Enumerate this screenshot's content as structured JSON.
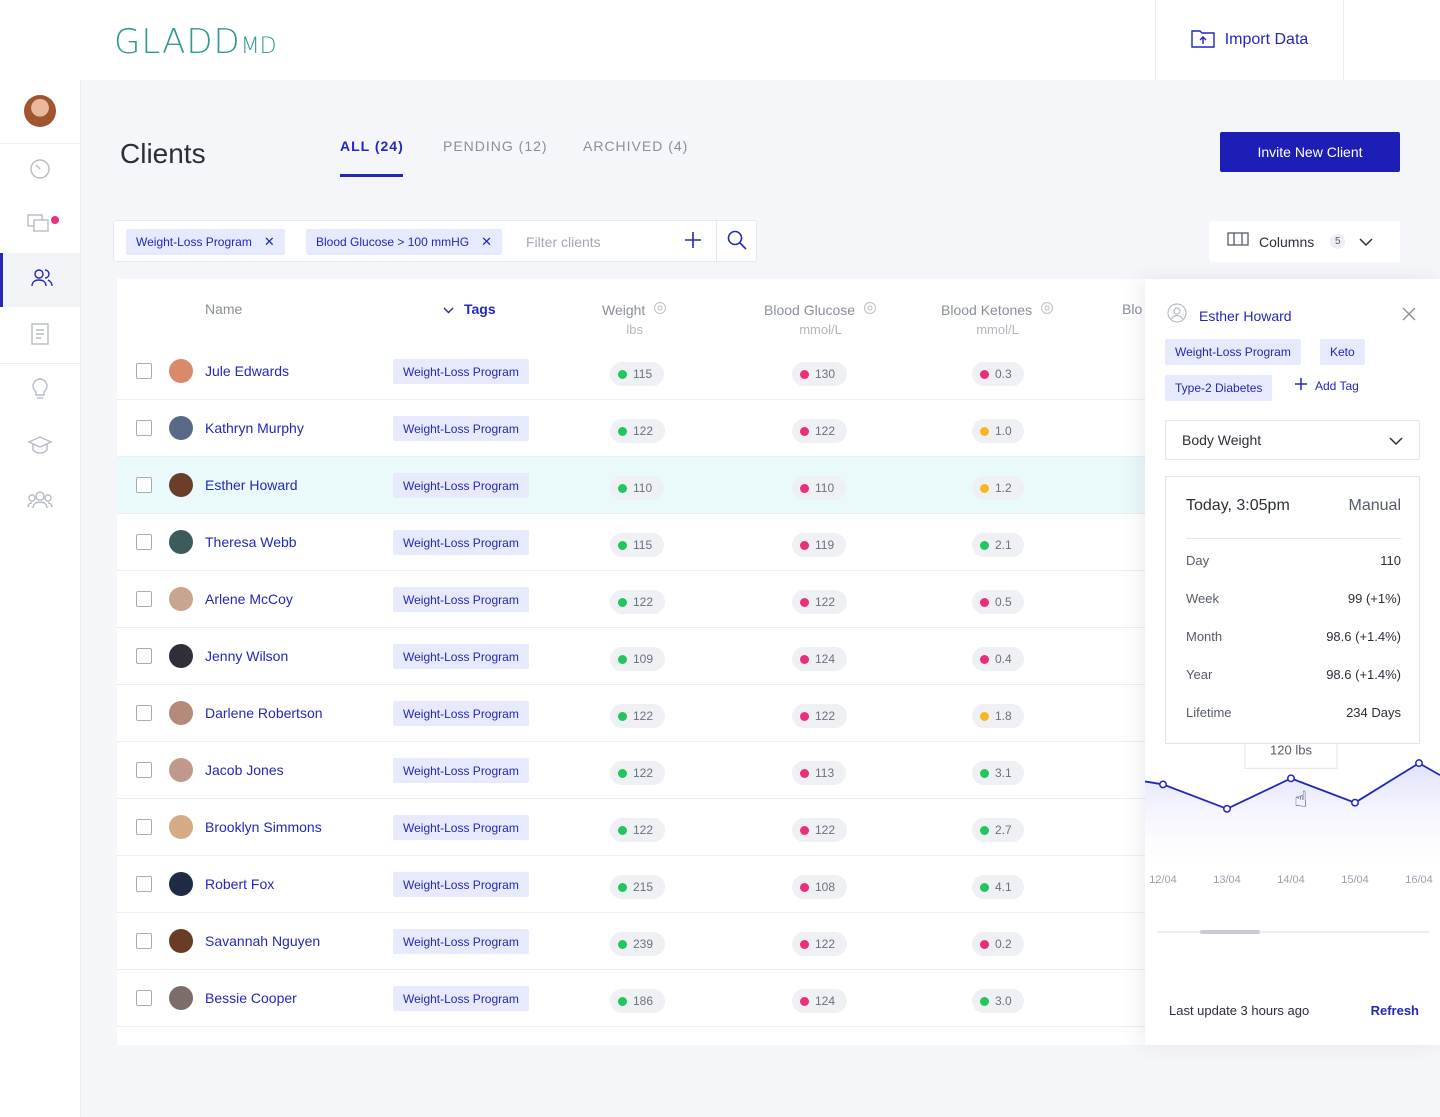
{
  "app": {
    "logo": "GLADD",
    "logo_suffix": "MD",
    "import_label": "Import Data"
  },
  "page": {
    "title": "Clients",
    "invite_label": "Invite New Client"
  },
  "tabs": [
    {
      "label": "ALL (24)",
      "active": true
    },
    {
      "label": "PENDING (12)",
      "active": false
    },
    {
      "label": "ARCHIVED (4)",
      "active": false
    }
  ],
  "filters": {
    "chips": [
      "Weight-Loss Program",
      "Blood Glucose > 100 mmHG"
    ],
    "placeholder": "Filter clients"
  },
  "columns_control": {
    "label": "Columns",
    "count": "5"
  },
  "table": {
    "headers": {
      "name": "Name",
      "tags": "Tags",
      "weight": "Weight",
      "weight_unit": "lbs",
      "glucose": "Blood Glucose",
      "glucose_unit": "mmol/L",
      "ketones": "Blood Ketones",
      "ketones_unit": "mmol/L",
      "extra": "Blo"
    },
    "rows": [
      {
        "name": "Jule Edwards",
        "tag": "Weight-Loss Program",
        "weight": "115",
        "weight_status": "g",
        "glucose": "130",
        "glucose_status": "r",
        "ketones": "0.3",
        "ketones_status": "r",
        "avatar_color": "#d98a6a"
      },
      {
        "name": "Kathryn Murphy",
        "tag": "Weight-Loss Program",
        "weight": "122",
        "weight_status": "g",
        "glucose": "122",
        "glucose_status": "r",
        "ketones": "1.0",
        "ketones_status": "y",
        "avatar_color": "#5a6a86"
      },
      {
        "name": "Esther Howard",
        "tag": "Weight-Loss Program",
        "weight": "110",
        "weight_status": "g",
        "glucose": "110",
        "glucose_status": "r",
        "ketones": "1.2",
        "ketones_status": "y",
        "avatar_color": "#6b3e2a"
      },
      {
        "name": "Theresa Webb",
        "tag": "Weight-Loss Program",
        "weight": "115",
        "weight_status": "g",
        "glucose": "119",
        "glucose_status": "r",
        "ketones": "2.1",
        "ketones_status": "g",
        "avatar_color": "#3c5b5a"
      },
      {
        "name": "Arlene McCoy",
        "tag": "Weight-Loss Program",
        "weight": "122",
        "weight_status": "g",
        "glucose": "122",
        "glucose_status": "r",
        "ketones": "0.5",
        "ketones_status": "r",
        "avatar_color": "#c9a48e"
      },
      {
        "name": "Jenny Wilson",
        "tag": "Weight-Loss Program",
        "weight": "109",
        "weight_status": "g",
        "glucose": "124",
        "glucose_status": "r",
        "ketones": "0.4",
        "ketones_status": "r",
        "avatar_color": "#2e2f38"
      },
      {
        "name": "Darlene Robertson",
        "tag": "Weight-Loss Program",
        "weight": "122",
        "weight_status": "g",
        "glucose": "122",
        "glucose_status": "r",
        "ketones": "1.8",
        "ketones_status": "y",
        "avatar_color": "#b58a7a"
      },
      {
        "name": "Jacob Jones",
        "tag": "Weight-Loss Program",
        "weight": "122",
        "weight_status": "g",
        "glucose": "113",
        "glucose_status": "r",
        "ketones": "3.1",
        "ketones_status": "g",
        "avatar_color": "#bf9a8c"
      },
      {
        "name": "Brooklyn Simmons",
        "tag": "Weight-Loss Program",
        "weight": "122",
        "weight_status": "g",
        "glucose": "122",
        "glucose_status": "r",
        "ketones": "2.7",
        "ketones_status": "g",
        "avatar_color": "#d3ab84"
      },
      {
        "name": "Robert Fox",
        "tag": "Weight-Loss Program",
        "weight": "215",
        "weight_status": "g",
        "glucose": "108",
        "glucose_status": "r",
        "ketones": "4.1",
        "ketones_status": "g",
        "avatar_color": "#1f2a44"
      },
      {
        "name": "Savannah Nguyen",
        "tag": "Weight-Loss Program",
        "weight": "239",
        "weight_status": "g",
        "glucose": "122",
        "glucose_status": "r",
        "ketones": "0.2",
        "ketones_status": "r",
        "avatar_color": "#6a3b25"
      },
      {
        "name": "Bessie Cooper",
        "tag": "Weight-Loss Program",
        "weight": "186",
        "weight_status": "g",
        "glucose": "124",
        "glucose_status": "r",
        "ketones": "3.0",
        "ketones_status": "g",
        "avatar_color": "#7d6d6a"
      }
    ]
  },
  "panel": {
    "name": "Esther Howard",
    "tags": [
      "Weight-Loss Program",
      "Keto",
      "Type-2 Diabetes"
    ],
    "add_tag_label": "Add Tag",
    "metric": "Body Weight",
    "stats_header": {
      "time": "Today, 3:05pm",
      "source": "Manual"
    },
    "stats": [
      {
        "label": "Day",
        "value": "110"
      },
      {
        "label": "Week",
        "value": "99 (+1%)"
      },
      {
        "label": "Month",
        "value": "98.6 (+1.4%)"
      },
      {
        "label": "Year",
        "value": "98.6 (+1.4%)"
      },
      {
        "label": "Lifetime",
        "value": "234 Days"
      }
    ],
    "tooltip": "120 lbs",
    "last_update": "Last update 3 hours ago",
    "refresh_label": "Refresh"
  },
  "chart_data": {
    "type": "area",
    "x": [
      "12/04",
      "13/04",
      "14/04",
      "15/04",
      "16/04"
    ],
    "values": [
      118,
      110,
      120,
      112,
      125
    ],
    "highlight_index": 2,
    "highlight_label": "120 lbs"
  },
  "colors": {
    "accent": "#2228b8",
    "brand": "#2f9a8e",
    "good": "#22c55e",
    "bad": "#ea2e7b",
    "warn": "#f5b623"
  }
}
